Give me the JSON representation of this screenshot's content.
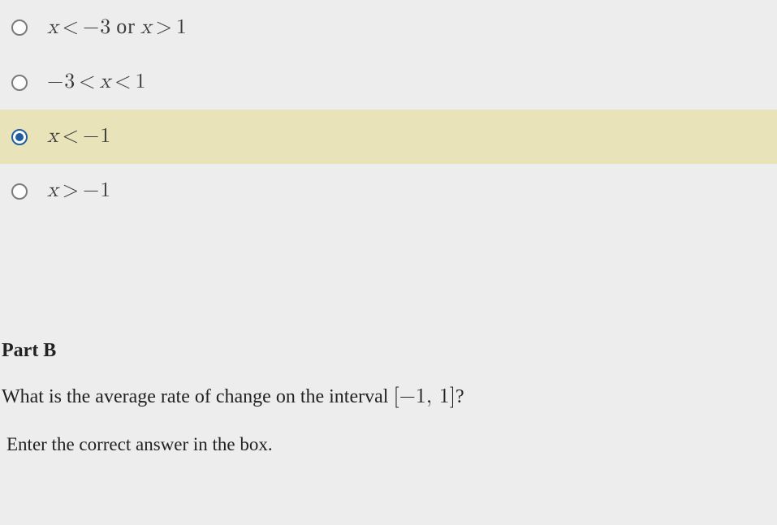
{
  "options": [
    {
      "expr_html": "<span class='var'>x</span><span class='op'>&lt;</span>&minus;3<span class='or-word'>or</span><span class='var'>x</span><span class='op'>&gt;</span>1",
      "selected": false
    },
    {
      "expr_html": "&minus;3<span class='op'>&lt;</span><span class='var'>x</span><span class='op'>&lt;</span>1",
      "selected": false
    },
    {
      "expr_html": "<span class='var'>x</span><span class='op'>&lt;</span>&minus;1",
      "selected": true
    },
    {
      "expr_html": "<span class='var'>x</span><span class='op'>&gt;</span>&minus;1",
      "selected": false
    }
  ],
  "partB": {
    "heading": "Part B",
    "question_prefix": "What is the average rate of change on the interval ",
    "interval": "[−1, 1]",
    "question_suffix": "?",
    "instruction": "Enter the correct answer in the box."
  },
  "colors": {
    "background": "#ededed",
    "highlight": "#e8e3b8",
    "radio_border": "#7b7b7b",
    "radio_selected": "#1f5d9c",
    "text": "#2b2b2b"
  }
}
